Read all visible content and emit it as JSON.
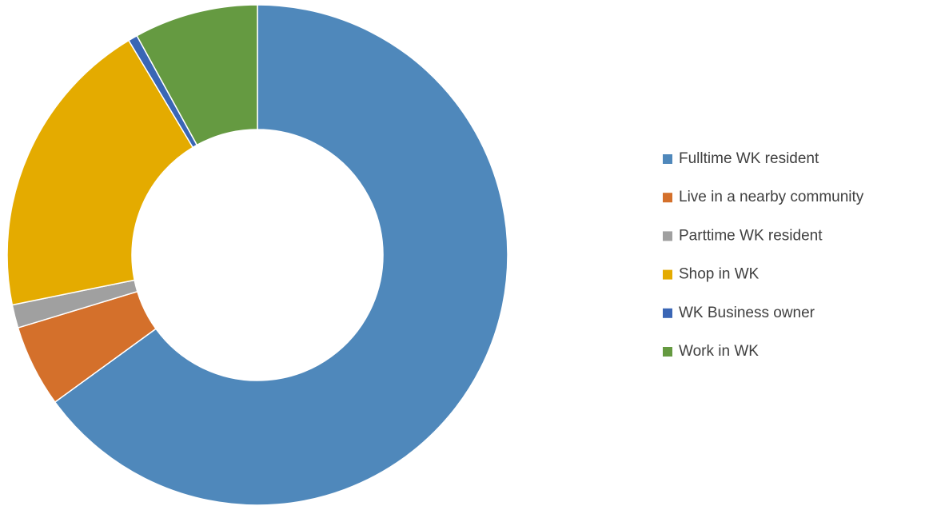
{
  "chart_data": {
    "type": "donut",
    "categories": [
      "Fulltime WK resident",
      "Live in a nearby community",
      "Parttime WK resident",
      "Shop in WK",
      "WK Business owner",
      "Work in WK"
    ],
    "values": [
      65.0,
      5.3,
      1.5,
      19.6,
      0.6,
      8.0
    ],
    "colors": [
      "#4f88bb",
      "#d4702b",
      "#a0a0a0",
      "#e4ab00",
      "#3a66b5",
      "#659a41"
    ],
    "legend": "right"
  }
}
